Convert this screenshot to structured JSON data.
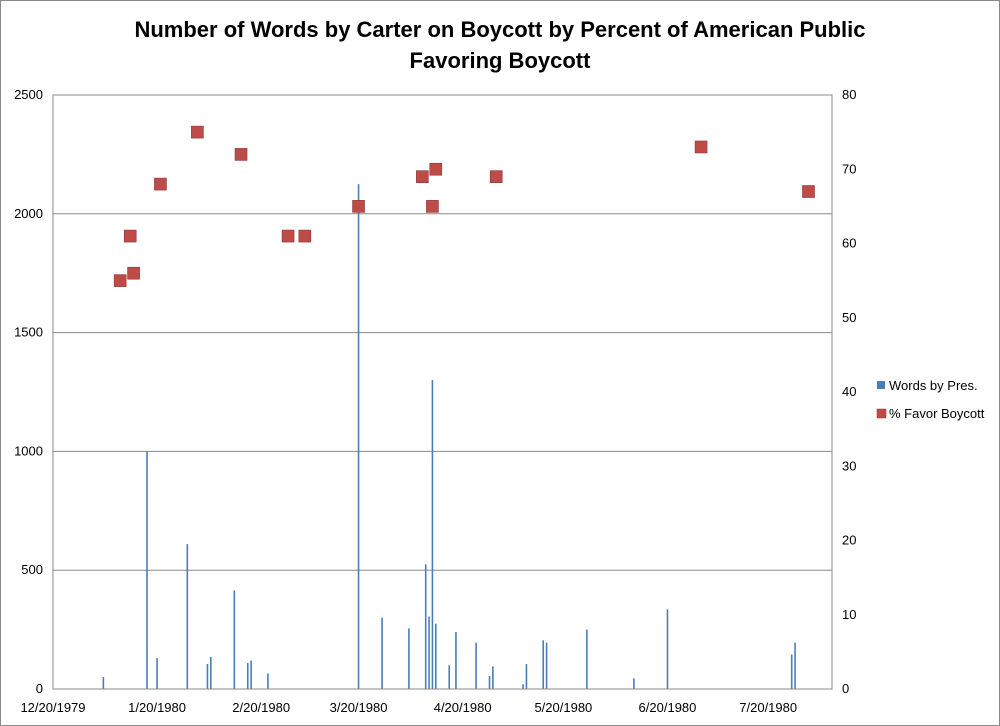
{
  "chart_data": {
    "type": "bar+scatter",
    "title_lines": [
      "Number of Words by Carter on Boycott by Percent of American Public",
      "Favoring Boycott"
    ],
    "x_axis": {
      "type": "date",
      "range": [
        "1979-12-20",
        "1980-08-08"
      ],
      "tick_dates": [
        "1979-12-20",
        "1980-01-20",
        "1980-02-20",
        "1980-03-20",
        "1980-04-20",
        "1980-05-20",
        "1980-06-20",
        "1980-07-20"
      ],
      "tick_labels": [
        "12/20/1979",
        "1/20/1980",
        "2/20/1980",
        "3/20/1980",
        "4/20/1980",
        "5/20/1980",
        "6/20/1980",
        "7/20/1980"
      ]
    },
    "y_left": {
      "min": 0,
      "max": 2500,
      "ticks": [
        0,
        500,
        1000,
        1500,
        2000,
        2500
      ],
      "tick_labels": [
        "0",
        "500",
        "1000",
        "1500",
        "2000",
        "2500"
      ]
    },
    "y_right": {
      "min": 0,
      "max": 80,
      "ticks": [
        0,
        10,
        20,
        30,
        40,
        50,
        60,
        70,
        80
      ],
      "tick_labels": [
        "0",
        "10",
        "20",
        "30",
        "40",
        "50",
        "60",
        "70",
        "80"
      ]
    },
    "gridlines": "horizontal",
    "legend_position": "right",
    "series": [
      {
        "name": "Words by Pres.",
        "kind": "bar",
        "axis": "left",
        "color": "#4a7ebb",
        "points": [
          {
            "date": "1980-01-04",
            "value": 50
          },
          {
            "date": "1980-01-17",
            "value": 1000
          },
          {
            "date": "1980-01-20",
            "value": 130
          },
          {
            "date": "1980-01-29",
            "value": 610
          },
          {
            "date": "1980-02-04",
            "value": 105
          },
          {
            "date": "1980-02-05",
            "value": 135
          },
          {
            "date": "1980-02-12",
            "value": 415
          },
          {
            "date": "1980-02-16",
            "value": 110
          },
          {
            "date": "1980-02-17",
            "value": 120
          },
          {
            "date": "1980-02-22",
            "value": 65
          },
          {
            "date": "1980-03-20",
            "value": 2125
          },
          {
            "date": "1980-03-27",
            "value": 300
          },
          {
            "date": "1980-04-04",
            "value": 255
          },
          {
            "date": "1980-04-09",
            "value": 525
          },
          {
            "date": "1980-04-10",
            "value": 305
          },
          {
            "date": "1980-04-11",
            "value": 1300
          },
          {
            "date": "1980-04-12",
            "value": 275
          },
          {
            "date": "1980-04-16",
            "value": 100
          },
          {
            "date": "1980-04-18",
            "value": 240
          },
          {
            "date": "1980-04-24",
            "value": 195
          },
          {
            "date": "1980-04-28",
            "value": 55
          },
          {
            "date": "1980-04-29",
            "value": 95
          },
          {
            "date": "1980-05-08",
            "value": 20
          },
          {
            "date": "1980-05-09",
            "value": 105
          },
          {
            "date": "1980-05-14",
            "value": 205
          },
          {
            "date": "1980-05-15",
            "value": 195
          },
          {
            "date": "1980-05-27",
            "value": 250
          },
          {
            "date": "1980-06-10",
            "value": 45
          },
          {
            "date": "1980-06-20",
            "value": 335
          },
          {
            "date": "1980-07-27",
            "value": 145
          },
          {
            "date": "1980-07-28",
            "value": 195
          }
        ]
      },
      {
        "name": "% Favor Boycott",
        "kind": "scatter",
        "axis": "right",
        "color": "#be4b48",
        "points": [
          {
            "date": "1980-01-09",
            "value": 55
          },
          {
            "date": "1980-01-12",
            "value": 61
          },
          {
            "date": "1980-01-13",
            "value": 56
          },
          {
            "date": "1980-01-21",
            "value": 68
          },
          {
            "date": "1980-02-01",
            "value": 75
          },
          {
            "date": "1980-02-14",
            "value": 72
          },
          {
            "date": "1980-02-28",
            "value": 61
          },
          {
            "date": "1980-03-04",
            "value": 61
          },
          {
            "date": "1980-03-20",
            "value": 65
          },
          {
            "date": "1980-04-08",
            "value": 69
          },
          {
            "date": "1980-04-11",
            "value": 65
          },
          {
            "date": "1980-04-12",
            "value": 70
          },
          {
            "date": "1980-04-30",
            "value": 69
          },
          {
            "date": "1980-06-30",
            "value": 73
          },
          {
            "date": "1980-08-01",
            "value": 67
          }
        ]
      }
    ]
  }
}
